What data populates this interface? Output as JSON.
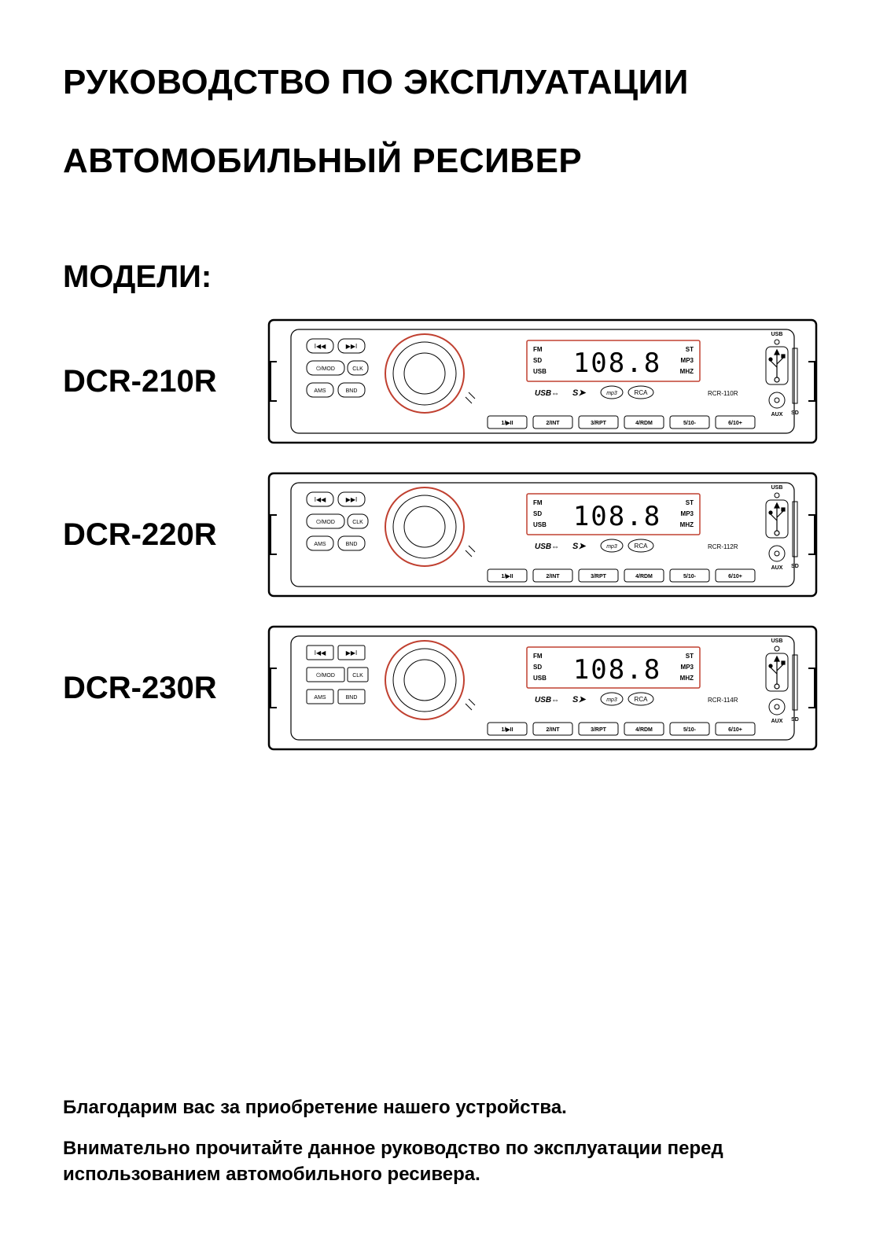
{
  "title1": "РУКОВОДСТВО ПО ЭКСПЛУАТАЦИИ",
  "title2": "АВТОМОБИЛЬНЫЙ РЕСИВЕР",
  "models_heading": "МОДЕЛИ:",
  "models": [
    {
      "label": "DCR-210R",
      "diagram_label": "RCR-110R"
    },
    {
      "label": "DCR-220R",
      "diagram_label": "RCR-112R"
    },
    {
      "label": "DCR-230R",
      "diagram_label": "RCR-114R"
    }
  ],
  "receiver_display": {
    "left_labels": [
      "FM",
      "SD",
      "USB"
    ],
    "right_labels": [
      "ST",
      "MP3",
      "MHZ"
    ],
    "digits": "108.8",
    "logos_text": "USB SD mp3 RCA",
    "preset_buttons": [
      "1/▶II",
      "2/INT",
      "3/RPT",
      "4/RDM",
      "5/10-",
      "6/10+"
    ],
    "top_buttons": [
      "I◀◀",
      "▶▶I"
    ],
    "mid_buttons": [
      "⏻/MOD",
      "CLK"
    ],
    "low_buttons": [
      "AMS",
      "BND"
    ],
    "usb_label": "USB",
    "aux_label": "AUX",
    "sd_label": "SD",
    "knob_color": "#c04030",
    "display_frame_color": "#c04030",
    "stroke_color": "#000000",
    "bg_color": "#ffffff"
  },
  "footer1": "Благодарим вас за приобретение нашего устройства.",
  "footer2": "Внимательно прочитайте данное руководство по эксплуатации перед использованием автомобильного ресивера."
}
